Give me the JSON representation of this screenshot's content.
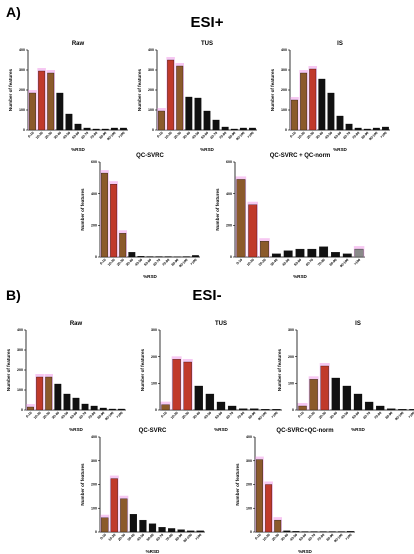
{
  "panels": {
    "a_letter": "A)",
    "a_title": "ESI+",
    "b_letter": "B)",
    "b_title": "ESI-"
  },
  "colors": {
    "brown": "#8B5A2B",
    "red": "#C0392B",
    "black": "#111111",
    "gray": "#8a8a8a",
    "highlight": "#f3b6ee"
  },
  "chart_data": [
    {
      "type": "bar",
      "title": "Raw",
      "xlabel": "%RSD",
      "ylabel": "Number of features",
      "ylim": [
        0,
        400
      ],
      "yticks": [
        0,
        100,
        200,
        300,
        400
      ],
      "categories": [
        "0-10",
        "10-20",
        "20-30",
        "30-40",
        "40-50",
        "50-60",
        "60-70",
        "70-80",
        "80-90",
        "90-100",
        ">100"
      ],
      "values": [
        185,
        295,
        285,
        185,
        80,
        30,
        10,
        5,
        5,
        10,
        10
      ],
      "bar_colors": [
        "brown",
        "red",
        "brown",
        "black",
        "black",
        "black",
        "black",
        "black",
        "black",
        "black",
        "black"
      ]
    },
    {
      "type": "bar",
      "title": "TUS",
      "xlabel": "%RSD",
      "ylabel": "Number of features",
      "ylim": [
        0,
        400
      ],
      "yticks": [
        0,
        100,
        200,
        300,
        400
      ],
      "categories": [
        "0-10",
        "10-20",
        "20-30",
        "30-40",
        "40-50",
        "50-60",
        "60-70",
        "70-80",
        "80-90",
        "90-100",
        ">100"
      ],
      "values": [
        95,
        350,
        320,
        165,
        160,
        95,
        50,
        15,
        5,
        10,
        10
      ],
      "bar_colors": [
        "brown",
        "red",
        "brown",
        "black",
        "black",
        "black",
        "black",
        "black",
        "black",
        "black",
        "black"
      ]
    },
    {
      "type": "bar",
      "title": "IS",
      "xlabel": "%RSD",
      "ylabel": "Number of features",
      "ylim": [
        0,
        400
      ],
      "yticks": [
        0,
        100,
        200,
        300,
        400
      ],
      "categories": [
        "0-10",
        "10-20",
        "20-30",
        "30-40",
        "40-50",
        "50-60",
        "60-70",
        "70-80",
        "80-90",
        "90-100",
        ">100"
      ],
      "values": [
        150,
        285,
        305,
        255,
        185,
        70,
        30,
        10,
        5,
        10,
        15
      ],
      "bar_colors": [
        "brown",
        "brown",
        "red",
        "black",
        "black",
        "black",
        "black",
        "black",
        "black",
        "black",
        "black"
      ]
    },
    {
      "type": "bar",
      "title": "QC-SVRC",
      "xlabel": "%RSD",
      "ylabel": "Number of features",
      "ylim": [
        0,
        600
      ],
      "yticks": [
        0,
        200,
        400,
        600
      ],
      "categories": [
        "0-10",
        "10-20",
        "20-30",
        "30-40",
        "40-50",
        "50-60",
        "60-70",
        "70-80",
        "80-90",
        "90-100",
        ">100"
      ],
      "values": [
        530,
        460,
        150,
        30,
        5,
        3,
        3,
        3,
        2,
        3,
        10
      ],
      "bar_colors": [
        "brown",
        "red",
        "brown",
        "black",
        "black",
        "black",
        "black",
        "black",
        "black",
        "black",
        "black"
      ]
    },
    {
      "type": "bar",
      "title": "QC-SVRC + QC-norm",
      "xlabel": "%RSD",
      "ylabel": "Number of features",
      "ylim": [
        0,
        600
      ],
      "yticks": [
        0,
        200,
        400,
        600
      ],
      "categories": [
        "0-10",
        "10-20",
        "20-30",
        "30-40",
        "40-50",
        "50-60",
        "60-70",
        "70-80",
        "80-90",
        "90-100",
        ">100"
      ],
      "values": [
        490,
        330,
        100,
        20,
        40,
        50,
        50,
        65,
        30,
        20,
        50
      ],
      "bar_colors": [
        "brown",
        "red",
        "brown",
        "black",
        "black",
        "black",
        "black",
        "black",
        "black",
        "black",
        "gray"
      ]
    },
    {
      "type": "bar",
      "title": "Raw",
      "xlabel": "%RSD",
      "ylabel": "Number of features",
      "ylim": [
        0,
        400
      ],
      "yticks": [
        0,
        100,
        200,
        300,
        400
      ],
      "categories": [
        "0-10",
        "10-20",
        "20-30",
        "30-40",
        "40-50",
        "50-60",
        "60-70",
        "70-80",
        "80-90",
        "90-100",
        ">100"
      ],
      "values": [
        15,
        165,
        165,
        130,
        80,
        60,
        30,
        20,
        10,
        5,
        5
      ],
      "bar_colors": [
        "brown",
        "red",
        "brown",
        "black",
        "black",
        "black",
        "black",
        "black",
        "black",
        "black",
        "black"
      ]
    },
    {
      "type": "bar",
      "title": "TUS",
      "xlabel": "%RSD",
      "ylabel": "Number of features",
      "ylim": [
        0,
        300
      ],
      "yticks": [
        0,
        100,
        200,
        300
      ],
      "categories": [
        "0-10",
        "10-20",
        "20-30",
        "30-40",
        "40-50",
        "50-60",
        "60-70",
        "70-80",
        "80-90",
        "90-100",
        ">100"
      ],
      "values": [
        20,
        190,
        180,
        90,
        60,
        30,
        15,
        5,
        5,
        3,
        3
      ],
      "bar_colors": [
        "brown",
        "red",
        "red",
        "black",
        "black",
        "black",
        "black",
        "black",
        "black",
        "black",
        "black"
      ]
    },
    {
      "type": "bar",
      "title": "IS",
      "xlabel": "%RSD",
      "ylabel": "Number of features",
      "ylim": [
        0,
        300
      ],
      "yticks": [
        0,
        100,
        200,
        300
      ],
      "categories": [
        "0-10",
        "10-20",
        "20-30",
        "30-40",
        "40-50",
        "50-60",
        "60-70",
        "70-80",
        "80-90",
        "90-100",
        ">100"
      ],
      "values": [
        15,
        115,
        165,
        120,
        90,
        60,
        30,
        15,
        5,
        3,
        3
      ],
      "bar_colors": [
        "brown",
        "brown",
        "red",
        "black",
        "black",
        "black",
        "black",
        "black",
        "black",
        "black",
        "black"
      ]
    },
    {
      "type": "bar",
      "title": "QC-SVRC",
      "xlabel": "%RSD",
      "ylabel": "Number of features",
      "ylim": [
        0,
        400
      ],
      "yticks": [
        0,
        100,
        200,
        300,
        400
      ],
      "categories": [
        "0-10",
        "10-20",
        "20-30",
        "30-40",
        "40-50",
        "50-60",
        "60-70",
        "70-80",
        "80-90",
        "90-100",
        ">100"
      ],
      "values": [
        60,
        225,
        140,
        75,
        50,
        35,
        20,
        15,
        10,
        5,
        5
      ],
      "bar_colors": [
        "brown",
        "red",
        "brown",
        "black",
        "black",
        "black",
        "black",
        "black",
        "black",
        "black",
        "black"
      ]
    },
    {
      "type": "bar",
      "title": "QC-SVRC+QC-norm",
      "xlabel": "%RSD",
      "ylabel": "Number of features",
      "ylim": [
        0,
        400
      ],
      "yticks": [
        0,
        100,
        200,
        300,
        400
      ],
      "categories": [
        "0-10",
        "10-20",
        "20-30",
        "30-40",
        "40-50",
        "50-60",
        "60-70",
        "70-80",
        "80-90",
        "90-100",
        ">100"
      ],
      "values": [
        305,
        200,
        50,
        5,
        3,
        2,
        2,
        2,
        2,
        2,
        3
      ],
      "bar_colors": [
        "brown",
        "red",
        "brown",
        "black",
        "black",
        "black",
        "black",
        "black",
        "black",
        "black",
        "black"
      ]
    }
  ]
}
